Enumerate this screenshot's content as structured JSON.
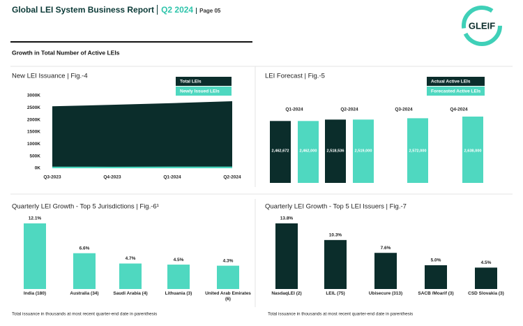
{
  "header": {
    "title": "Global LEI System Business Report",
    "period": "Q2 2024",
    "page": "Page 05",
    "logo": "GLEIF"
  },
  "section_title": "Growth in Total Number of Active LEIs",
  "chart_data": [
    {
      "type": "area",
      "title": "New LEI Issuance | Fig.-4",
      "categories": [
        "Q3-2023",
        "Q4-2023",
        "Q1-2024",
        "Q2-2024"
      ],
      "series": [
        {
          "name": "Total LEIs",
          "color": "#0b2d2b",
          "values": [
            2560,
            2620,
            2690,
            2770
          ]
        },
        {
          "name": "Newly Issued LEIs",
          "color": "#4fd8c0",
          "values": [
            65,
            62,
            70,
            68
          ]
        }
      ],
      "ylim": [
        0,
        3000
      ],
      "yticks": [
        {
          "value": 0,
          "label": "0K"
        },
        {
          "value": 500,
          "label": "500K"
        },
        {
          "value": 1000,
          "label": "1000K"
        },
        {
          "value": 1500,
          "label": "1500K"
        },
        {
          "value": 2000,
          "label": "2000K"
        },
        {
          "value": 2500,
          "label": "2500K"
        },
        {
          "value": 3000,
          "label": "3000K"
        }
      ]
    },
    {
      "type": "bar",
      "title": "LEI Forecast | Fig.-5",
      "categories": [
        "Q1-2024",
        "Q2-2024",
        "Q3-2024",
        "Q4-2024"
      ],
      "series": [
        {
          "name": "Actual Active LEIs",
          "color": "#0b2d2b",
          "values": [
            2462672,
            2518536,
            null,
            null
          ],
          "value_labels": [
            "2,462,672",
            "2,518,536",
            null,
            null
          ]
        },
        {
          "name": "Forecasted Active LEIs",
          "color": "#4fd8c0",
          "values": [
            2462000,
            2519000,
            2572000,
            2638000
          ],
          "value_labels": [
            "2,462,000",
            "2,519,000",
            "2,572,000",
            "2,638,000"
          ]
        }
      ]
    },
    {
      "type": "bar",
      "title": "Quarterly LEI Growth - Top 5 Jurisdictions | Fig.-6¹",
      "categories": [
        "India (180)",
        "Australia (34)",
        "Saudi Arabia (4)",
        "Lithuania (3)",
        "United Arab Emirates (6)"
      ],
      "values": [
        12.1,
        6.6,
        4.7,
        4.5,
        4.3
      ],
      "value_labels": [
        "12.1%",
        "6.6%",
        "4.7%",
        "4.5%",
        "4.3%"
      ],
      "color": "#4fd8c0",
      "note": "Total issuance in thousands at most recent quarter-end date in parenthesis"
    },
    {
      "type": "bar",
      "title": "Quarterly LEI Growth - Top 5 LEI Issuers | Fig.-7",
      "categories": [
        "NasdaqLEI (2)",
        "LEIL (75)",
        "Ubisecure (313)",
        "SACB /Moarif (3)",
        "CSD Slovakia (3)"
      ],
      "values": [
        13.8,
        10.3,
        7.6,
        5.0,
        4.5
      ],
      "value_labels": [
        "13.8%",
        "10.3%",
        "7.6%",
        "5.0%",
        "4.5%"
      ],
      "color": "#0b2d2b",
      "note": "Total issuance in thousands at most recent quarter-end date in parenthesis"
    }
  ]
}
